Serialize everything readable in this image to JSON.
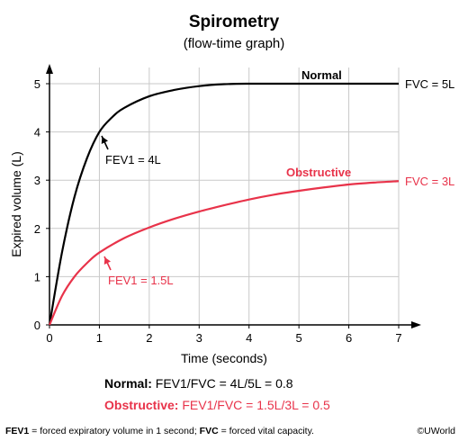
{
  "chart_data": {
    "type": "line",
    "title": "Spirometry",
    "subtitle": "(flow-time graph)",
    "xlabel": "Time (seconds)",
    "ylabel": "Expired volume (L)",
    "xlim": [
      0,
      7
    ],
    "ylim": [
      0,
      5
    ],
    "xticks": [
      0,
      1,
      2,
      3,
      4,
      5,
      6,
      7
    ],
    "yticks": [
      0,
      1,
      2,
      3,
      4,
      5
    ],
    "grid": true,
    "series": [
      {
        "name": "Normal",
        "color": "#000000",
        "x": [
          0,
          0.25,
          0.5,
          0.75,
          1,
          1.25,
          1.5,
          2,
          2.5,
          3,
          3.5,
          4,
          5,
          6,
          7
        ],
        "y": [
          0,
          1.5,
          2.65,
          3.45,
          4.0,
          4.3,
          4.5,
          4.74,
          4.87,
          4.95,
          4.99,
          5.0,
          5.0,
          5.0,
          5.0
        ],
        "end_label": "FVC = 5L",
        "point_label": "FEV1 = 4L",
        "point": [
          1,
          4
        ]
      },
      {
        "name": "Obstructive",
        "color": "#e8334a",
        "x": [
          0,
          0.25,
          0.5,
          0.75,
          1,
          1.5,
          2,
          2.5,
          3,
          3.5,
          4,
          4.5,
          5,
          5.5,
          6,
          6.5,
          7
        ],
        "y": [
          0,
          0.6,
          1.0,
          1.28,
          1.5,
          1.8,
          2.02,
          2.2,
          2.35,
          2.48,
          2.6,
          2.7,
          2.78,
          2.85,
          2.91,
          2.95,
          2.98
        ],
        "end_label": "FVC = 3L",
        "point_label": "FEV1 = 1.5L",
        "point": [
          1,
          1.5
        ]
      }
    ]
  },
  "equations": {
    "normal_label": "Normal:",
    "normal_text": " FEV1/FVC = 4L/5L = 0.8",
    "obstructive_label": "Obstructive:",
    "obstructive_text": " FEV1/FVC = 1.5L/3L = 0.5"
  },
  "footnote": {
    "fev1_term": "FEV1",
    "fev1_def": " = forced expiratory volume in 1 second; ",
    "fvc_term": "FVC",
    "fvc_def": " = forced vital capacity."
  },
  "copyright": "©UWorld"
}
